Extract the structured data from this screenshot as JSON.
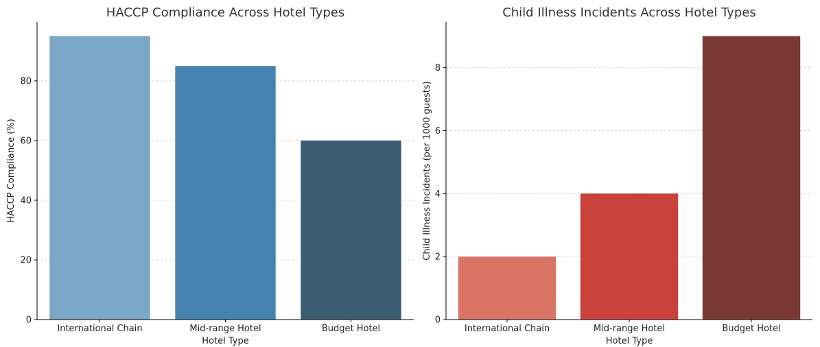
{
  "chart_data": [
    {
      "type": "bar",
      "title": "HACCP Compliance Across Hotel Types",
      "xlabel": "Hotel Type",
      "ylabel": "HACCP Compliance (%)",
      "categories": [
        "International Chain",
        "Mid-range Hotel",
        "Budget Hotel"
      ],
      "values": [
        95,
        85,
        60
      ],
      "ylim": [
        0,
        99.75
      ],
      "yticks": [
        0,
        20,
        40,
        60,
        80
      ],
      "colors": [
        "#7ba8c7",
        "#4682b0",
        "#3b5c72"
      ],
      "grid": "y-dashed"
    },
    {
      "type": "bar",
      "title": "Child Illness Incidents Across Hotel Types",
      "xlabel": "Hotel Type",
      "ylabel": "Child Illness Incidents (per 1000 guests)",
      "categories": [
        "International Chain",
        "Mid-range Hotel",
        "Budget Hotel"
      ],
      "values": [
        2,
        4,
        9
      ],
      "ylim": [
        0,
        9.45
      ],
      "yticks": [
        0,
        2,
        4,
        6,
        8
      ],
      "colors": [
        "#da7566",
        "#c8413b",
        "#7a3835"
      ],
      "grid": "y-dashed"
    }
  ]
}
